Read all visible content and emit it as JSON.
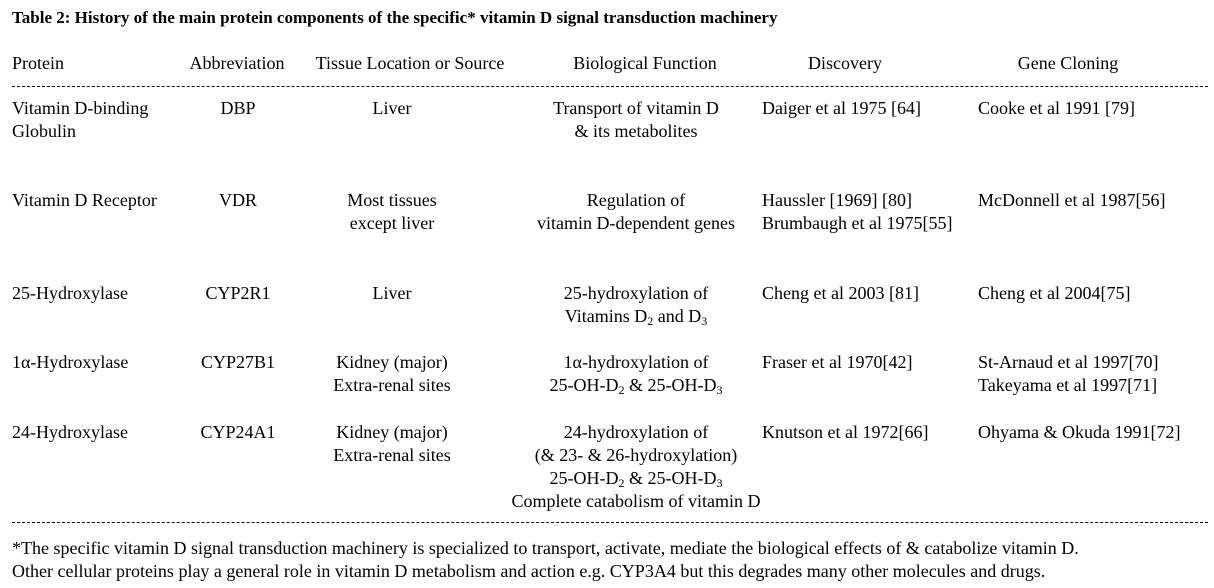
{
  "title": "Table 2: History of the main protein components of the specific* vitamin D signal transduction machinery",
  "table": {
    "header": [
      "Protein",
      "Abbreviation",
      "Tissue Location or Source",
      "Biological Function",
      "Discovery",
      "Gene Cloning"
    ],
    "rows": [
      [
        [
          [
            "Vitamin D-binding"
          ],
          [
            "Globulin"
          ]
        ],
        [
          [
            "DBP"
          ]
        ],
        [
          [
            "Liver"
          ]
        ],
        [
          [
            "Transport of vitamin D"
          ],
          [
            "& its metabolites"
          ]
        ],
        [
          [
            "Daiger et al 1975 [64]"
          ]
        ],
        [
          [
            "Cooke et al 1991 [79]"
          ]
        ]
      ],
      [
        [
          [
            "Vitamin D Receptor"
          ]
        ],
        [
          [
            "VDR"
          ]
        ],
        [
          [
            "Most tissues"
          ],
          [
            "except liver"
          ]
        ],
        [
          [
            "Regulation of"
          ],
          [
            "vitamin D-dependent genes"
          ]
        ],
        [
          [
            "Haussler [1969] [80]"
          ],
          [
            "Brumbaugh et al 1975[55]"
          ]
        ],
        [
          [
            "McDonnell et al 1987[56]"
          ]
        ]
      ],
      [
        [
          [
            "25-Hydroxylase"
          ]
        ],
        [
          [
            "CYP2R1"
          ]
        ],
        [
          [
            "Liver"
          ]
        ],
        [
          [
            "25-hydroxylation of"
          ],
          [
            "Vitamins D",
            "2",
            " and D",
            "3"
          ]
        ],
        [
          [
            "Cheng et al 2003 [81]"
          ]
        ],
        [
          [
            "Cheng et al 2004[75]"
          ]
        ]
      ],
      [
        [
          [
            "1α-Hydroxylase"
          ]
        ],
        [
          [
            "CYP27B1"
          ]
        ],
        [
          [
            "Kidney (major)"
          ],
          [
            "Extra-renal sites"
          ]
        ],
        [
          [
            "1α-hydroxylation of"
          ],
          [
            "25-OH-D",
            "2",
            " & 25-OH-D",
            "3"
          ]
        ],
        [
          [
            "Fraser et al 1970[42]"
          ]
        ],
        [
          [
            "St-Arnaud et al 1997[70]"
          ],
          [
            "Takeyama et al 1997[71]"
          ]
        ]
      ],
      [
        [
          [
            "24-Hydroxylase"
          ]
        ],
        [
          [
            "CYP24A1"
          ]
        ],
        [
          [
            "Kidney (major)"
          ],
          [
            "Extra-renal sites"
          ]
        ],
        [
          [
            "24-hydroxylation of"
          ],
          [
            "(& 23- & 26-hydroxylation)"
          ],
          [
            "25-OH-D",
            "2",
            " & 25-OH-D",
            "3"
          ],
          [
            "Complete catabolism of vitamin D"
          ]
        ],
        [
          [
            "Knutson et al 1972[66]"
          ]
        ],
        [
          [
            "Ohyama & Okuda 1991[72]"
          ]
        ]
      ]
    ]
  },
  "footnote": [
    "*The specific vitamin D signal transduction machinery is specialized to transport, activate, mediate the biological effects of & catabolize vitamin D.",
    "Other cellular proteins play a general role in vitamin D metabolism and action e.g. CYP3A4 but this degrades many other molecules and drugs."
  ]
}
